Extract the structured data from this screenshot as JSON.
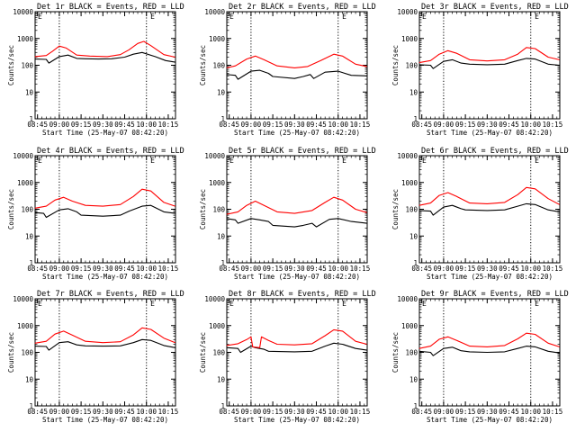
{
  "figure": {
    "subtitle": "Start Time (25-May-07 08:42:20)",
    "ylabel": "Counts/sec",
    "yscale": "log",
    "x_range_hours": [
      8.7222,
      10.3333
    ],
    "x_tick_labels": [
      "08:45",
      "09:00",
      "09:15",
      "09:30",
      "09:45",
      "10:00",
      "10:15"
    ],
    "x_tick_hours": [
      8.75,
      9.0,
      9.25,
      9.5,
      9.75,
      10.0,
      10.25
    ],
    "colors": {
      "events": "#000000",
      "lld": "#ff0000",
      "axes": "#000000"
    },
    "marker_glyph": "E",
    "marker_hour": 10.07
  },
  "chart_data": [
    {
      "type": "line",
      "title": "Det 1r BLACK = Events, RED = LLD",
      "ylim": [
        1,
        10000
      ],
      "y_tick_labels": [
        "1",
        "10",
        "100",
        "1000",
        "10000"
      ],
      "vlines_hours": [
        9.0,
        10.0
      ],
      "series": [
        {
          "name": "Events",
          "color": "#000000",
          "x": [
            8.72,
            8.85,
            8.88,
            9.0,
            9.1,
            9.2,
            9.3,
            9.45,
            9.6,
            9.75,
            9.85,
            9.95,
            10.1,
            10.22,
            10.33
          ],
          "y": [
            170,
            165,
            120,
            210,
            240,
            180,
            175,
            170,
            175,
            200,
            260,
            300,
            210,
            150,
            130
          ]
        },
        {
          "name": "LLD",
          "color": "#ff0000",
          "x": [
            8.72,
            8.85,
            8.92,
            9.0,
            9.08,
            9.2,
            9.35,
            9.55,
            9.7,
            9.8,
            9.9,
            9.97,
            10.05,
            10.2,
            10.33
          ],
          "y": [
            210,
            230,
            330,
            520,
            440,
            240,
            220,
            210,
            250,
            380,
            650,
            780,
            540,
            250,
            200
          ]
        }
      ]
    },
    {
      "type": "line",
      "title": "Det 2r BLACK = Events, RED = LLD",
      "ylim": [
        1,
        10000
      ],
      "y_tick_labels": [
        "1",
        "10",
        "100",
        "1000",
        "10000"
      ],
      "vlines_hours": [
        9.0,
        10.0
      ],
      "series": [
        {
          "name": "Events",
          "color": "#000000",
          "x": [
            8.72,
            8.82,
            8.85,
            9.0,
            9.1,
            9.2,
            9.25,
            9.5,
            9.6,
            9.68,
            9.72,
            9.85,
            10.0,
            10.15,
            10.33
          ],
          "y": [
            45,
            42,
            30,
            60,
            65,
            50,
            38,
            32,
            38,
            45,
            32,
            55,
            60,
            42,
            40
          ]
        },
        {
          "name": "LLD",
          "color": "#ff0000",
          "x": [
            8.72,
            8.82,
            8.95,
            9.05,
            9.15,
            9.3,
            9.5,
            9.65,
            9.8,
            9.95,
            10.05,
            10.2,
            10.33
          ],
          "y": [
            80,
            95,
            170,
            220,
            160,
            95,
            80,
            90,
            150,
            260,
            220,
            110,
            90
          ]
        }
      ]
    },
    {
      "type": "line",
      "title": "Det 3r BLACK = Events, RED = LLD",
      "ylim": [
        1,
        10000
      ],
      "y_tick_labels": [
        "1",
        "10",
        "100",
        "1000",
        "10000"
      ],
      "vlines_hours": [
        9.0,
        10.0
      ],
      "series": [
        {
          "name": "Events",
          "color": "#000000",
          "x": [
            8.72,
            8.85,
            8.88,
            9.0,
            9.1,
            9.2,
            9.3,
            9.5,
            9.7,
            9.85,
            9.95,
            10.05,
            10.2,
            10.33
          ],
          "y": [
            105,
            100,
            75,
            140,
            160,
            120,
            110,
            105,
            110,
            150,
            180,
            170,
            110,
            100
          ]
        },
        {
          "name": "LLD",
          "color": "#ff0000",
          "x": [
            8.72,
            8.85,
            8.95,
            9.05,
            9.15,
            9.3,
            9.5,
            9.7,
            9.85,
            9.95,
            10.05,
            10.2,
            10.33
          ],
          "y": [
            125,
            150,
            260,
            350,
            280,
            160,
            145,
            160,
            260,
            460,
            420,
            200,
            160
          ]
        }
      ]
    },
    {
      "type": "line",
      "title": "Det 4r BLACK = Events, RED = LLD",
      "ylim": [
        1,
        10000
      ],
      "y_tick_labels": [
        "1",
        "10",
        "100",
        "1000",
        "10000"
      ],
      "vlines_hours": [
        9.0,
        10.0
      ],
      "series": [
        {
          "name": "Events",
          "color": "#000000",
          "x": [
            8.72,
            8.82,
            8.85,
            9.0,
            9.1,
            9.2,
            9.25,
            9.5,
            9.7,
            9.8,
            9.95,
            10.05,
            10.2,
            10.33
          ],
          "y": [
            75,
            70,
            50,
            95,
            105,
            80,
            60,
            55,
            60,
            85,
            130,
            140,
            80,
            70
          ]
        },
        {
          "name": "LLD",
          "color": "#ff0000",
          "x": [
            8.72,
            8.85,
            8.95,
            9.05,
            9.15,
            9.3,
            9.5,
            9.7,
            9.85,
            9.95,
            10.05,
            10.2,
            10.33
          ],
          "y": [
            110,
            130,
            220,
            280,
            200,
            140,
            130,
            150,
            300,
            560,
            480,
            180,
            130
          ]
        }
      ]
    },
    {
      "type": "line",
      "title": "Det 5r BLACK = Events, RED = LLD",
      "ylim": [
        1,
        10000
      ],
      "y_tick_labels": [
        "1",
        "10",
        "100",
        "1000",
        "10000"
      ],
      "vlines_hours": [
        9.0,
        10.0
      ],
      "series": [
        {
          "name": "Events",
          "color": "#000000",
          "x": [
            8.72,
            8.82,
            8.85,
            9.0,
            9.1,
            9.2,
            9.25,
            9.5,
            9.6,
            9.7,
            9.75,
            9.9,
            10.0,
            10.15,
            10.33
          ],
          "y": [
            45,
            40,
            30,
            45,
            40,
            35,
            25,
            22,
            25,
            30,
            22,
            42,
            45,
            35,
            30
          ]
        },
        {
          "name": "LLD",
          "color": "#ff0000",
          "x": [
            8.72,
            8.85,
            8.95,
            9.05,
            9.15,
            9.3,
            9.5,
            9.7,
            9.85,
            9.95,
            10.05,
            10.2,
            10.33
          ],
          "y": [
            65,
            80,
            140,
            200,
            140,
            80,
            70,
            90,
            180,
            280,
            220,
            100,
            75
          ]
        }
      ]
    },
    {
      "type": "line",
      "title": "Det 6r BLACK = Events, RED = LLD",
      "ylim": [
        1,
        10000
      ],
      "y_tick_labels": [
        "1",
        "10",
        "100",
        "1000",
        "10000"
      ],
      "vlines_hours": [
        9.0,
        10.0
      ],
      "series": [
        {
          "name": "Events",
          "color": "#000000",
          "x": [
            8.72,
            8.85,
            8.88,
            9.0,
            9.1,
            9.2,
            9.25,
            9.5,
            9.7,
            9.85,
            9.95,
            10.05,
            10.2,
            10.33
          ],
          "y": [
            90,
            85,
            60,
            120,
            140,
            105,
            95,
            90,
            95,
            130,
            160,
            150,
            95,
            80
          ]
        },
        {
          "name": "LLD",
          "color": "#ff0000",
          "x": [
            8.72,
            8.85,
            8.95,
            9.05,
            9.15,
            9.3,
            9.5,
            9.7,
            9.85,
            9.95,
            10.05,
            10.2,
            10.33
          ],
          "y": [
            140,
            170,
            330,
            420,
            300,
            170,
            160,
            180,
            350,
            650,
            580,
            250,
            150
          ]
        }
      ]
    },
    {
      "type": "line",
      "title": "Det 7r BLACK = Events, RED = LLD",
      "ylim": [
        1,
        10000
      ],
      "y_tick_labels": [
        "1",
        "10",
        "100",
        "1000",
        "10000"
      ],
      "vlines_hours": [
        9.0,
        10.0
      ],
      "series": [
        {
          "name": "Events",
          "color": "#000000",
          "x": [
            8.72,
            8.85,
            8.88,
            9.0,
            9.1,
            9.2,
            9.3,
            9.5,
            9.7,
            9.85,
            9.95,
            10.05,
            10.2,
            10.33
          ],
          "y": [
            170,
            165,
            120,
            230,
            250,
            190,
            175,
            170,
            175,
            230,
            300,
            280,
            180,
            150
          ]
        },
        {
          "name": "LLD",
          "color": "#ff0000",
          "x": [
            8.72,
            8.85,
            8.95,
            9.05,
            9.15,
            9.3,
            9.5,
            9.7,
            9.85,
            9.95,
            10.05,
            10.2,
            10.33
          ],
          "y": [
            220,
            260,
            480,
            620,
            440,
            260,
            230,
            250,
            450,
            820,
            720,
            340,
            230
          ]
        }
      ]
    },
    {
      "type": "line",
      "title": "Det 8r BLACK = Events, RED = LLD",
      "ylim": [
        1,
        10000
      ],
      "y_tick_labels": [
        "1",
        "10",
        "100",
        "1000",
        "10000"
      ],
      "vlines_hours": [
        9.0,
        10.0
      ],
      "series": [
        {
          "name": "Events",
          "color": "#000000",
          "x": [
            8.72,
            8.85,
            8.88,
            9.0,
            9.05,
            9.15,
            9.2,
            9.5,
            9.7,
            9.85,
            9.95,
            10.05,
            10.2,
            10.33
          ],
          "y": [
            150,
            140,
            100,
            170,
            150,
            130,
            110,
            105,
            110,
            170,
            220,
            200,
            140,
            120
          ]
        },
        {
          "name": "LLD",
          "color": "#ff0000",
          "x": [
            8.72,
            8.85,
            8.95,
            9.0,
            9.02,
            9.1,
            9.12,
            9.2,
            9.3,
            9.5,
            9.7,
            9.85,
            9.95,
            10.05,
            10.2,
            10.33
          ],
          "y": [
            180,
            210,
            300,
            380,
            160,
            150,
            380,
            280,
            200,
            190,
            210,
            420,
            700,
            620,
            260,
            200
          ]
        }
      ]
    },
    {
      "type": "line",
      "title": "Det 9r BLACK = Events, RED = LLD",
      "ylim": [
        1,
        10000
      ],
      "y_tick_labels": [
        "1",
        "10",
        "100",
        "1000",
        "10000"
      ],
      "vlines_hours": [
        9.0,
        10.0
      ],
      "series": [
        {
          "name": "Events",
          "color": "#000000",
          "x": [
            8.72,
            8.85,
            8.88,
            9.0,
            9.1,
            9.2,
            9.3,
            9.5,
            9.7,
            9.85,
            9.95,
            10.05,
            10.2,
            10.33
          ],
          "y": [
            110,
            100,
            75,
            140,
            155,
            115,
            105,
            100,
            105,
            140,
            170,
            160,
            110,
            95
          ]
        },
        {
          "name": "LLD",
          "color": "#ff0000",
          "x": [
            8.72,
            8.85,
            8.95,
            9.05,
            9.15,
            9.3,
            9.5,
            9.7,
            9.85,
            9.95,
            10.05,
            10.2,
            10.33
          ],
          "y": [
            140,
            170,
            310,
            380,
            280,
            170,
            160,
            180,
            320,
            520,
            470,
            220,
            160
          ]
        }
      ]
    }
  ]
}
